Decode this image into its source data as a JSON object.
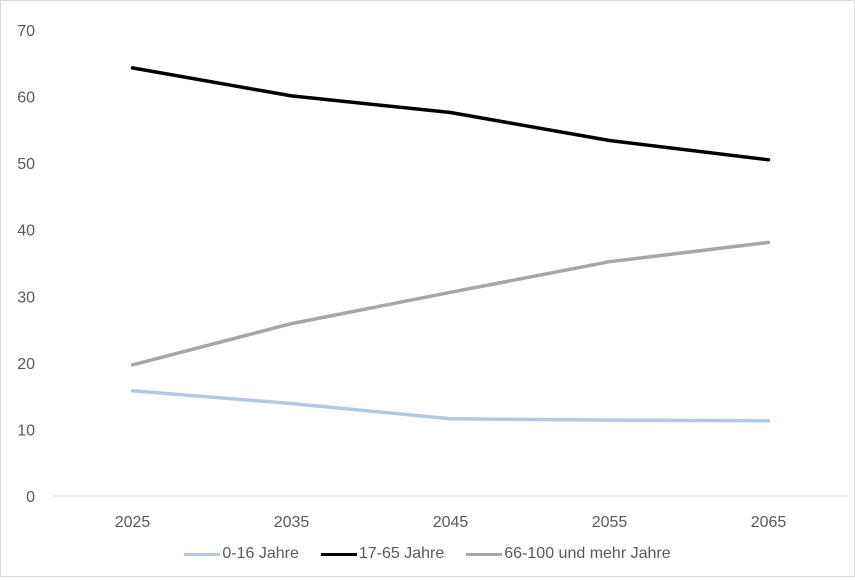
{
  "chart_data": {
    "type": "line",
    "x": [
      "2025",
      "2035",
      "2045",
      "2055",
      "2065"
    ],
    "series": [
      {
        "name": "0-16 Jahre",
        "values": [
          15.8,
          13.9,
          11.6,
          11.4,
          11.3
        ],
        "color": "#b4c7e7"
      },
      {
        "name": "17-65 Jahre",
        "values": [
          64.3,
          60.1,
          57.6,
          53.4,
          50.5
        ],
        "color": "#000000"
      },
      {
        "name": "66-100 und mehr Jahre",
        "values": [
          19.7,
          25.9,
          30.6,
          35.2,
          38.1
        ],
        "color": "#a6a6a6"
      }
    ],
    "y_ticks": [
      "0",
      "10",
      "20",
      "30",
      "40",
      "50",
      "60",
      "70"
    ],
    "ylim": [
      0,
      70
    ],
    "grid": false,
    "legend_position": "bottom",
    "axis_color": "#d9d9d9"
  }
}
